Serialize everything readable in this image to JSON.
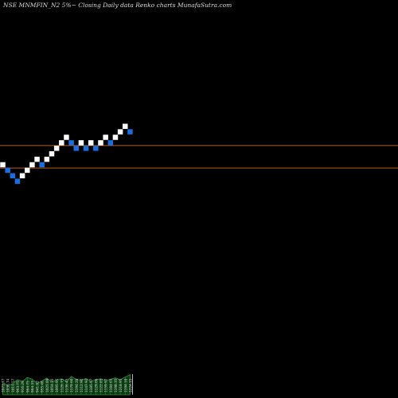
{
  "header": {
    "title": "NSE MNMFIN_N2  5%~  Closing Daily data  Renko  charts MunafaSutra.com"
  },
  "chart_data": {
    "type": "renko",
    "title": "NSE MNMFIN_N2  5%~  Closing Daily data  Renko  charts MunafaSutra.com",
    "colors": {
      "background": "#000000",
      "up_brick": "#ffffff",
      "down_brick": "#1a6fe0",
      "reference_line": "#b85a1e",
      "volume_fill": "#0b3a12",
      "volume_line": "#2f8f3a",
      "labels": "#cccccc"
    },
    "bricks": [
      {
        "dir": "up",
        "level": 0
      },
      {
        "dir": "down",
        "level": -1
      },
      {
        "dir": "down",
        "level": -2
      },
      {
        "dir": "down",
        "level": -3
      },
      {
        "dir": "up",
        "level": -2
      },
      {
        "dir": "up",
        "level": -1
      },
      {
        "dir": "up",
        "level": 0
      },
      {
        "dir": "up",
        "level": 1
      },
      {
        "dir": "down",
        "level": 0
      },
      {
        "dir": "up",
        "level": 1
      },
      {
        "dir": "up",
        "level": 2
      },
      {
        "dir": "up",
        "level": 3
      },
      {
        "dir": "up",
        "level": 4
      },
      {
        "dir": "up",
        "level": 5
      },
      {
        "dir": "down",
        "level": 4
      },
      {
        "dir": "down",
        "level": 3
      },
      {
        "dir": "up",
        "level": 4
      },
      {
        "dir": "down",
        "level": 3
      },
      {
        "dir": "up",
        "level": 4
      },
      {
        "dir": "down",
        "level": 3
      },
      {
        "dir": "up",
        "level": 4
      },
      {
        "dir": "up",
        "level": 5
      },
      {
        "dir": "down",
        "level": 4
      },
      {
        "dir": "up",
        "level": 5
      },
      {
        "dir": "up",
        "level": 6
      },
      {
        "dir": "up",
        "level": 7
      },
      {
        "dir": "down",
        "level": 6
      }
    ],
    "reference_levels": [
      3.5,
      -0.6
    ],
    "price_labels": [
      "1071.77",
      "1036.74",
      "1011.57",
      "963.75",
      "916.29",
      "964.75",
      "964.37",
      "941.82",
      "955.48",
      "1025.89",
      "1054.36",
      "1095.95",
      "1126.75",
      "1136.45",
      "1179.60",
      "1194.28",
      "1112.90",
      "1147.92",
      "1185.97",
      "1129.66",
      "1122.85",
      "1159.97",
      "1184.65",
      "1198.35",
      "1218.95",
      "1194.18",
      "1224.15"
    ],
    "volumes": [
      0.55,
      0.42,
      0.5,
      0.68,
      0.6,
      0.78,
      0.7,
      0.52,
      0.62,
      0.75,
      0.58,
      0.66,
      0.72,
      0.6,
      0.82,
      0.7,
      0.65,
      0.74,
      0.6,
      0.68,
      0.72,
      0.64,
      0.7,
      0.76,
      0.68,
      0.8,
      0.9
    ]
  }
}
